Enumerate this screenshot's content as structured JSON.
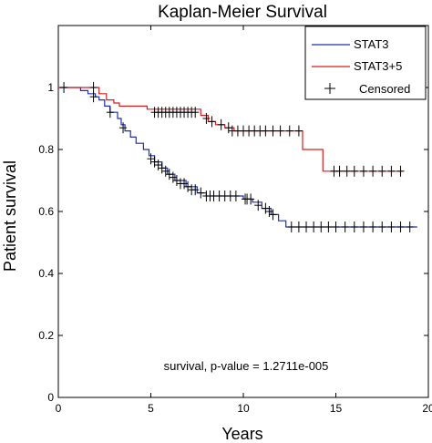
{
  "chart_data": {
    "type": "line",
    "title": "Kaplan-Meier Survival",
    "xlabel": "Years",
    "ylabel": "Patient survival",
    "xlim": [
      0,
      20
    ],
    "ylim": [
      0,
      1.2
    ],
    "xticks": [
      "0",
      "5",
      "10",
      "15",
      "20"
    ],
    "yticks": [
      "0",
      "0.2",
      "0.4",
      "0.6",
      "0.8",
      "1"
    ],
    "grid": false,
    "legend_position": "top-right",
    "annotation": "survival, p-value = 1.2711e-005",
    "series": [
      {
        "name": "STAT3",
        "color": "#1f2fb0",
        "steps": [
          [
            0,
            1.0
          ],
          [
            1.2,
            0.99
          ],
          [
            1.6,
            0.98
          ],
          [
            2.0,
            0.97
          ],
          [
            2.2,
            0.96
          ],
          [
            2.5,
            0.94
          ],
          [
            2.8,
            0.92
          ],
          [
            3.2,
            0.9
          ],
          [
            3.4,
            0.88
          ],
          [
            3.6,
            0.86
          ],
          [
            3.9,
            0.84
          ],
          [
            4.2,
            0.82
          ],
          [
            4.6,
            0.8
          ],
          [
            4.9,
            0.78
          ],
          [
            5.2,
            0.76
          ],
          [
            5.6,
            0.74
          ],
          [
            5.9,
            0.72
          ],
          [
            6.3,
            0.7
          ],
          [
            6.9,
            0.68
          ],
          [
            7.5,
            0.66
          ],
          [
            8.0,
            0.65
          ],
          [
            10.0,
            0.64
          ],
          [
            10.5,
            0.63
          ],
          [
            11.0,
            0.61
          ],
          [
            11.5,
            0.59
          ],
          [
            11.9,
            0.57
          ],
          [
            12.3,
            0.55
          ],
          [
            19.4,
            0.55
          ]
        ],
        "censored": [
          [
            1.9,
            0.97
          ],
          [
            2.8,
            0.92
          ],
          [
            3.5,
            0.87
          ],
          [
            5.0,
            0.77
          ],
          [
            5.2,
            0.76
          ],
          [
            5.4,
            0.75
          ],
          [
            5.6,
            0.74
          ],
          [
            5.8,
            0.73
          ],
          [
            6.0,
            0.72
          ],
          [
            6.2,
            0.71
          ],
          [
            6.4,
            0.7
          ],
          [
            6.6,
            0.69
          ],
          [
            6.8,
            0.69
          ],
          [
            7.0,
            0.68
          ],
          [
            7.2,
            0.67
          ],
          [
            7.4,
            0.67
          ],
          [
            7.7,
            0.66
          ],
          [
            8.0,
            0.65
          ],
          [
            8.2,
            0.65
          ],
          [
            8.4,
            0.65
          ],
          [
            8.7,
            0.65
          ],
          [
            9.0,
            0.65
          ],
          [
            9.3,
            0.65
          ],
          [
            9.6,
            0.65
          ],
          [
            10.1,
            0.64
          ],
          [
            10.2,
            0.64
          ],
          [
            10.4,
            0.64
          ],
          [
            10.8,
            0.62
          ],
          [
            11.2,
            0.61
          ],
          [
            11.4,
            0.6
          ],
          [
            11.6,
            0.59
          ],
          [
            12.6,
            0.55
          ],
          [
            13.0,
            0.55
          ],
          [
            13.4,
            0.55
          ],
          [
            13.8,
            0.55
          ],
          [
            14.2,
            0.55
          ],
          [
            14.6,
            0.55
          ],
          [
            15.0,
            0.55
          ],
          [
            15.5,
            0.55
          ],
          [
            16.0,
            0.55
          ],
          [
            16.5,
            0.55
          ],
          [
            17.0,
            0.55
          ],
          [
            17.5,
            0.55
          ],
          [
            18.0,
            0.55
          ],
          [
            18.5,
            0.55
          ],
          [
            19.0,
            0.55
          ]
        ]
      },
      {
        "name": "STAT3+5",
        "color": "#d42020",
        "steps": [
          [
            0,
            1.0
          ],
          [
            2.2,
            0.98
          ],
          [
            2.6,
            0.96
          ],
          [
            3.0,
            0.95
          ],
          [
            3.3,
            0.94
          ],
          [
            4.8,
            0.93
          ],
          [
            7.7,
            0.91
          ],
          [
            8.1,
            0.89
          ],
          [
            8.5,
            0.88
          ],
          [
            9.0,
            0.87
          ],
          [
            9.5,
            0.86
          ],
          [
            13.2,
            0.8
          ],
          [
            14.3,
            0.73
          ],
          [
            18.6,
            0.73
          ]
        ],
        "censored": [
          [
            0.3,
            1.0
          ],
          [
            1.9,
            1.0
          ],
          [
            5.2,
            0.92
          ],
          [
            5.4,
            0.92
          ],
          [
            5.6,
            0.92
          ],
          [
            5.8,
            0.92
          ],
          [
            6.0,
            0.92
          ],
          [
            6.2,
            0.92
          ],
          [
            6.4,
            0.92
          ],
          [
            6.6,
            0.92
          ],
          [
            6.8,
            0.92
          ],
          [
            7.0,
            0.92
          ],
          [
            7.2,
            0.92
          ],
          [
            7.4,
            0.92
          ],
          [
            8.0,
            0.9
          ],
          [
            8.3,
            0.89
          ],
          [
            8.8,
            0.88
          ],
          [
            9.2,
            0.87
          ],
          [
            9.4,
            0.86
          ],
          [
            9.7,
            0.86
          ],
          [
            10.0,
            0.86
          ],
          [
            10.3,
            0.86
          ],
          [
            10.6,
            0.86
          ],
          [
            10.9,
            0.86
          ],
          [
            11.2,
            0.86
          ],
          [
            11.6,
            0.86
          ],
          [
            12.0,
            0.86
          ],
          [
            12.5,
            0.86
          ],
          [
            13.0,
            0.86
          ],
          [
            14.9,
            0.73
          ],
          [
            15.2,
            0.73
          ],
          [
            15.6,
            0.73
          ],
          [
            16.0,
            0.73
          ],
          [
            16.5,
            0.73
          ],
          [
            17.0,
            0.73
          ],
          [
            17.5,
            0.73
          ],
          [
            18.0,
            0.73
          ],
          [
            18.5,
            0.73
          ]
        ]
      }
    ],
    "legend": [
      "STAT3",
      "STAT3+5",
      "Censored"
    ]
  }
}
